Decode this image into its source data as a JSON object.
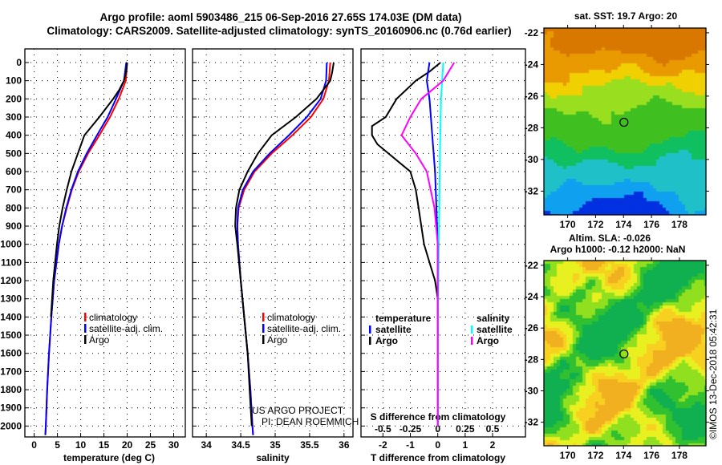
{
  "title_line1": "Argo profile: aoml 5903486_215 06-Sep-2016 27.65S 174.03E (DM data)",
  "title_line2": "Climatology: CARS2009. Satellite-adjusted climatology: synTS_20160906.nc (0.76d earlier)",
  "colors": {
    "argo": "#000000",
    "climatology": "#ff0000",
    "satellite": "#0000ff",
    "sal_satellite": "#00ffff",
    "sal_argo": "#ff00ff"
  },
  "chart_data": [
    {
      "type": "line",
      "id": "temperature",
      "xlabel": "temperature (deg C)",
      "ylabel": "",
      "xlim": [
        -2,
        32.5
      ],
      "ylim": [
        2060,
        -75
      ],
      "xticks": [
        0,
        5,
        10,
        15,
        20,
        25,
        30
      ],
      "yticks": [
        0,
        100,
        200,
        300,
        400,
        500,
        600,
        700,
        800,
        900,
        1000,
        1100,
        1200,
        1300,
        1400,
        1500,
        1600,
        1700,
        1800,
        1900,
        2000
      ],
      "legend": [
        "climatology",
        "satellite-adj. clim.",
        "Argo"
      ],
      "legend_placement": "lower-center",
      "series": [
        {
          "name": "climatology",
          "color": "#ff0000",
          "depth": [
            0,
            100,
            200,
            300,
            400,
            500,
            600,
            700,
            800,
            900,
            1000,
            1200,
            1400,
            1600,
            1800,
            2000,
            2050
          ],
          "values": [
            20,
            19.7,
            18.2,
            16.3,
            14,
            11.6,
            9.6,
            8.1,
            7,
            6,
            5.3,
            4.3,
            3.7,
            3.2,
            2.8,
            2.5,
            2.4
          ]
        },
        {
          "name": "satellite-adj. clim.",
          "color": "#0000ff",
          "depth": [
            0,
            100,
            200,
            300,
            400,
            500,
            600,
            700,
            800,
            900,
            1000,
            1200,
            1400,
            1600,
            1800,
            2000,
            2050
          ],
          "values": [
            19.8,
            19.3,
            17.6,
            15.8,
            13.5,
            11.3,
            9.4,
            8,
            6.9,
            6,
            5.3,
            4.3,
            3.7,
            3.2,
            2.8,
            2.5,
            2.4
          ]
        },
        {
          "name": "Argo",
          "color": "#000000",
          "depth": [
            0,
            50,
            100,
            150,
            200,
            300,
            400,
            500,
            600,
            700,
            800,
            900,
            1000,
            1200,
            1400
          ],
          "values": [
            20,
            19.8,
            19.3,
            18.3,
            17,
            14,
            10.8,
            9.4,
            8,
            7,
            6.1,
            5.4,
            4.9,
            4.1,
            3.6
          ]
        }
      ]
    },
    {
      "type": "line",
      "id": "salinity",
      "xlabel": "salinity",
      "ylabel": "",
      "xlim": [
        33.8,
        36.13
      ],
      "ylim": [
        2060,
        -75
      ],
      "xticks": [
        34,
        34.5,
        35,
        35.5,
        36
      ],
      "xticklabels": [
        "34",
        "34.5",
        "35",
        "35.5",
        "36"
      ],
      "legend": [
        "climatology",
        "satellite-adj. clim.",
        "Argo"
      ],
      "annotation": [
        "US ARGO PROJECT",
        "PI: DEAN ROEMMICH"
      ],
      "series": [
        {
          "name": "climatology",
          "color": "#ff0000",
          "depth": [
            0,
            100,
            200,
            300,
            400,
            500,
            600,
            700,
            800,
            900,
            1000,
            1200,
            1400,
            1600,
            1800,
            2000,
            2050
          ],
          "values": [
            35.8,
            35.78,
            35.7,
            35.52,
            35.25,
            34.95,
            34.7,
            34.55,
            34.47,
            34.45,
            34.46,
            34.5,
            34.55,
            34.6,
            34.64,
            34.67,
            34.68
          ]
        },
        {
          "name": "satellite-adj. clim.",
          "color": "#0000ff",
          "depth": [
            0,
            100,
            200,
            300,
            400,
            500,
            600,
            700,
            800,
            900,
            1000,
            1200,
            1400,
            1600,
            1800,
            2000,
            2050
          ],
          "values": [
            35.75,
            35.74,
            35.66,
            35.46,
            35.2,
            34.92,
            34.68,
            34.53,
            34.46,
            34.45,
            34.46,
            34.5,
            34.55,
            34.6,
            34.64,
            34.67,
            34.68
          ]
        },
        {
          "name": "Argo",
          "color": "#000000",
          "depth": [
            0,
            50,
            100,
            200,
            300,
            400,
            500,
            600,
            700,
            800,
            900,
            1000,
            1200,
            1400,
            1600,
            1800,
            2000
          ],
          "values": [
            35.85,
            35.83,
            35.8,
            35.6,
            35.3,
            34.95,
            34.75,
            34.6,
            34.48,
            34.43,
            34.42,
            34.45,
            34.5,
            34.55,
            34.6,
            34.63,
            34.66
          ]
        }
      ]
    },
    {
      "type": "line",
      "id": "difference",
      "xlabel": "T difference from climatology",
      "x2label": "S difference from climatology",
      "xlim": [
        -2.8,
        3.2
      ],
      "ylim": [
        2060,
        -75
      ],
      "xticks": [
        -2,
        -1,
        0,
        1,
        2
      ],
      "x2ticks": [
        -0.5,
        -0.25,
        0,
        0.25,
        0.5
      ],
      "x2ticklabels": [
        "-0.5",
        "-0.25",
        "0",
        "0.25",
        "0.5"
      ],
      "legend_temperature": {
        "title": "temperature",
        "items": [
          "satellite",
          "Argo"
        ]
      },
      "legend_salinity": {
        "title": "salinity",
        "items": [
          "satellite",
          "Argo"
        ]
      },
      "series": [
        {
          "name": "temperature Argo",
          "color": "#000000",
          "axis": "T",
          "depth": [
            0,
            50,
            100,
            200,
            300,
            350,
            400,
            450,
            500,
            600,
            700,
            800,
            900,
            1000,
            1100,
            1200,
            1300
          ],
          "values": [
            0.1,
            -0.3,
            -0.8,
            -1.5,
            -1.9,
            -2.4,
            -2.4,
            -2.2,
            -1.8,
            -1.0,
            -0.8,
            -0.7,
            -0.6,
            -0.5,
            -0.3,
            -0.1,
            0
          ]
        },
        {
          "name": "temperature satellite",
          "color": "#0000ff",
          "axis": "T",
          "depth": [
            0,
            100,
            200,
            400,
            600,
            800,
            1000,
            1500,
            2000
          ],
          "values": [
            -0.3,
            -0.4,
            -0.3,
            -0.2,
            -0.1,
            -0.05,
            0,
            0,
            0
          ]
        },
        {
          "name": "salinity satellite",
          "color": "#00ffff",
          "axis": "S",
          "depth": [
            0,
            200,
            500,
            1000,
            1500,
            2000
          ],
          "values": [
            0.05,
            0.03,
            0.02,
            0.01,
            0,
            0
          ]
        },
        {
          "name": "salinity Argo",
          "color": "#ff00ff",
          "axis": "S",
          "depth": [
            0,
            100,
            200,
            300,
            400,
            500,
            600,
            800,
            1000,
            1300,
            1700,
            2000
          ],
          "values": [
            0.15,
            0.05,
            -0.15,
            -0.25,
            -0.33,
            -0.2,
            -0.1,
            -0.03,
            0,
            0,
            0,
            0
          ]
        }
      ]
    },
    {
      "type": "heatmap",
      "id": "sst_map",
      "title": "sat. SST: 19.7 Argo: 20",
      "xticks": [
        170,
        172,
        174,
        176,
        178
      ],
      "yticks": [
        -22,
        -24,
        -26,
        -28,
        -30,
        -32
      ],
      "xlim": [
        168.3,
        179.9
      ],
      "ylim": [
        -33.5,
        -21.7
      ],
      "marker": {
        "lon": 174.03,
        "lat": -27.65
      }
    },
    {
      "type": "heatmap",
      "id": "sla_map",
      "title": "Altim. SLA: -0.026",
      "subtitle": "Argo h1000: -0.12 h2000: NaN",
      "xticks": [
        170,
        172,
        174,
        176,
        178
      ],
      "yticks": [
        -22,
        -24,
        -26,
        -28,
        -30,
        -32
      ],
      "xlim": [
        168.3,
        179.9
      ],
      "ylim": [
        -33.5,
        -21.7
      ],
      "marker": {
        "lon": 174.03,
        "lat": -27.65
      }
    }
  ],
  "credit": "©IMOS 13-Dec-2018 05:42:31"
}
